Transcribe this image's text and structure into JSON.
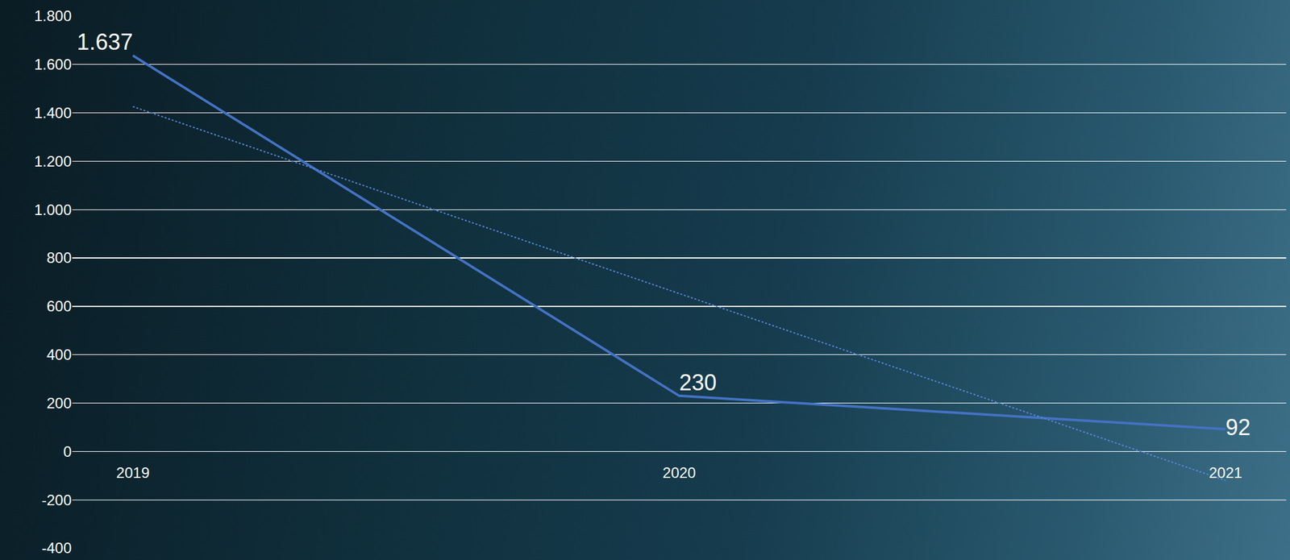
{
  "chart_data": {
    "type": "line",
    "categories": [
      "2019",
      "2020",
      "2021"
    ],
    "series": [
      {
        "values": [
          1637,
          230,
          92
        ],
        "value_labels": [
          "1.637",
          "230",
          "92"
        ],
        "color": "#4472c4",
        "line_style": "solid"
      },
      {
        "values": [
          1426,
          653,
          -120
        ],
        "color": "#5a86d8",
        "line_style": "dotted"
      }
    ],
    "ylim": [
      -400,
      1800
    ],
    "yticks": [
      -400,
      -200,
      0,
      200,
      400,
      600,
      800,
      {
        "value": 1000,
        "label": "1.000"
      },
      {
        "value": 1200,
        "label": "1.200"
      },
      {
        "value": 1400,
        "label": "1.400"
      },
      {
        "value": 1600,
        "label": "1.600"
      },
      {
        "value": 1800,
        "label": "1.800"
      }
    ],
    "grid": true,
    "data_labels": true
  }
}
